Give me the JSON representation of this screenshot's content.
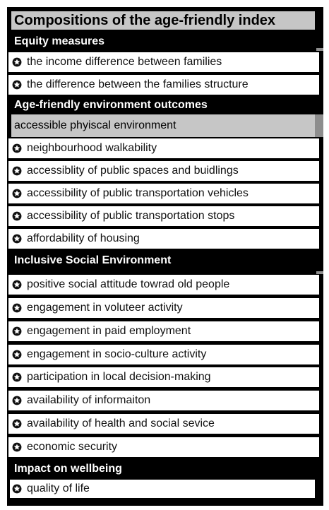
{
  "title": "Compositions of the age-friendly index",
  "sections": [
    {
      "label": "Equity measures",
      "items": [
        "the income difference between families",
        "the difference between the families structure"
      ]
    },
    {
      "label": "Age-friendly environment outcomes",
      "subheading": "accessible phyiscal environment",
      "items": [
        "neighbourhood walkability",
        "accessiblity of public spaces and buidlings",
        "accessibility of public transportation vehicles",
        "accessibility of public transportation stops",
        "affordability of housing"
      ]
    },
    {
      "label": "Inclusive Social Environment",
      "items": [
        "positive social attitude towrad old people",
        "engagement in voluteer  activity",
        "engagement in paid employment",
        "engagement in socio-culture activity",
        "participation in local decision-making",
        "availability of informaiton",
        "availability of health and social sevice",
        "economic security"
      ]
    },
    {
      "label": "Impact on wellbeing",
      "items": [
        "quality of life"
      ]
    }
  ],
  "bullet_icon": "star-in-circle-icon",
  "colors": {
    "panel": "#000000",
    "header_bar": "#c6c6c6",
    "row": "#ffffff",
    "accent_bar": "#8d8d8d"
  }
}
